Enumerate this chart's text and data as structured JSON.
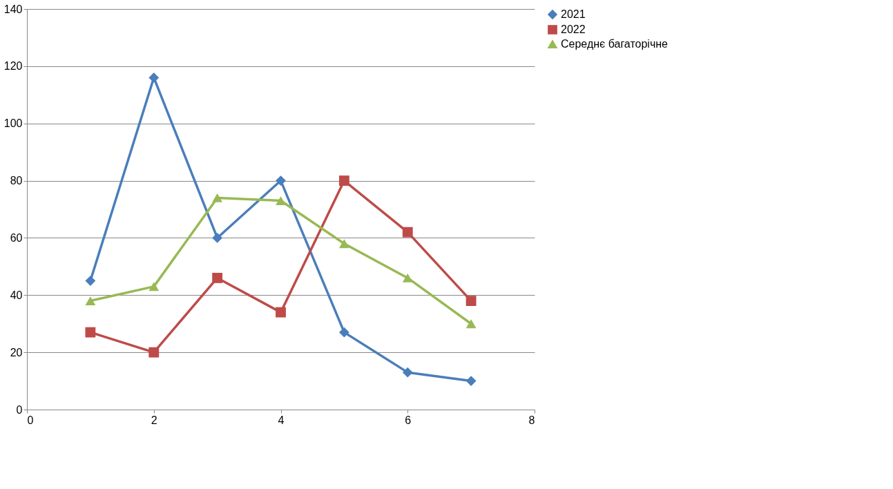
{
  "chart_data": {
    "type": "line",
    "x": [
      1,
      2,
      3,
      4,
      5,
      6,
      7
    ],
    "series": [
      {
        "name": "2021",
        "color": "#4a7ebb",
        "marker": "diamond",
        "values": [
          45,
          116,
          60,
          80,
          27,
          13,
          10
        ]
      },
      {
        "name": "2022",
        "color": "#be4b48",
        "marker": "square",
        "values": [
          27,
          20,
          46,
          34,
          80,
          62,
          38
        ]
      },
      {
        "name": "Середнє багаторічне",
        "color": "#98b954",
        "marker": "triangle",
        "values": [
          38,
          43,
          74,
          73,
          58,
          46,
          30
        ]
      }
    ],
    "xlim": [
      0,
      8
    ],
    "xticks": [
      0,
      2,
      4,
      6,
      8
    ],
    "ylim": [
      0,
      140
    ],
    "yticks": [
      0,
      20,
      40,
      60,
      80,
      100,
      120,
      140
    ],
    "grid": "y",
    "legend": "right",
    "line_style": "solid"
  }
}
